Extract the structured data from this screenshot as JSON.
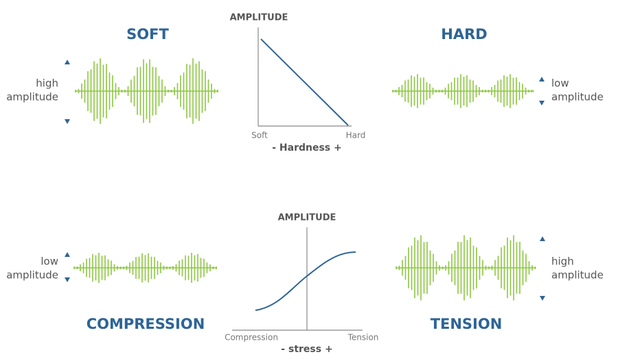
{
  "panels": [
    {
      "title": "SOFT",
      "amplitude_label": [
        "high",
        "amplitude"
      ]
    },
    {
      "title": "HARD",
      "amplitude_label": [
        "low",
        "amplitude"
      ]
    },
    {
      "title": "COMPRESSION",
      "amplitude_label": [
        "low",
        "amplitude"
      ]
    },
    {
      "title": "TENSION",
      "amplitude_label": [
        "high",
        "amplitude"
      ]
    }
  ],
  "graphs": [
    {
      "y_label": "AMPLITUDE",
      "x_start": "Soft",
      "x_end": "Hard",
      "x_label": "- Hardness +"
    },
    {
      "y_label": "AMPLITUDE",
      "x_start": "Compression",
      "x_end": "Tension",
      "x_label": "- stress +"
    }
  ]
}
